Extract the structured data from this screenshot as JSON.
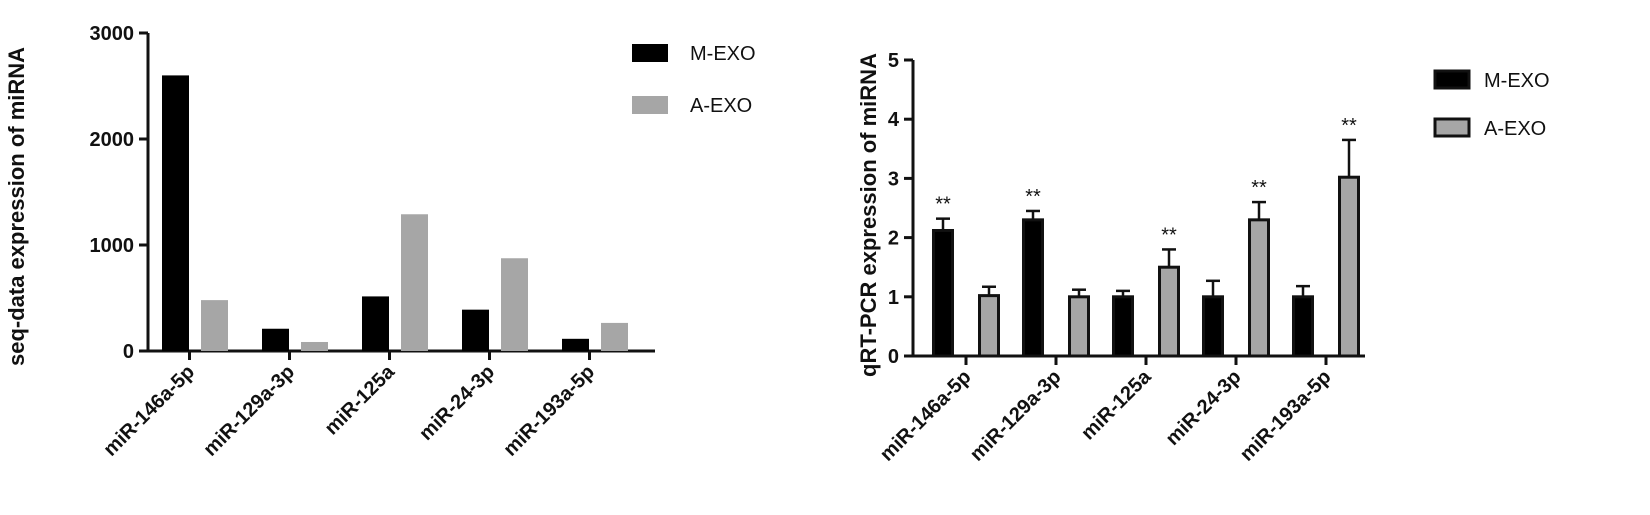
{
  "chart_data": [
    {
      "type": "bar",
      "title": "",
      "xlabel": "",
      "ylabel": "seq-data expression of miRNA",
      "ylim": [
        0,
        3000
      ],
      "yticks": [
        0,
        1000,
        2000,
        3000
      ],
      "categories": [
        "miR-146a-5p",
        "miR-129a-3p",
        "miR-125a",
        "miR-24-3p",
        "miR-193a-5p"
      ],
      "series": [
        {
          "name": "M-EXO",
          "color": "#000000",
          "values": [
            2600,
            210,
            515,
            390,
            115
          ]
        },
        {
          "name": "A-EXO",
          "color": "#a6a6a6",
          "values": [
            480,
            85,
            1290,
            875,
            265
          ]
        }
      ],
      "legend": "top-right",
      "grid": false
    },
    {
      "type": "bar",
      "title": "",
      "xlabel": "",
      "ylabel": "qRT-PCR expression of miRNA",
      "ylim": [
        0,
        5
      ],
      "yticks": [
        0,
        1,
        2,
        3,
        4,
        5
      ],
      "categories": [
        "miR-146a-5p",
        "miR-129a-3p",
        "miR-125a",
        "miR-24-3p",
        "miR-193a-5p"
      ],
      "series": [
        {
          "name": "M-EXO",
          "color": "#000000",
          "values": [
            2.12,
            2.3,
            1.0,
            1.0,
            1.0
          ],
          "errors": [
            0.2,
            0.15,
            0.1,
            0.27,
            0.18
          ]
        },
        {
          "name": "A-EXO",
          "color": "#a6a6a6",
          "values": [
            1.02,
            1.0,
            1.5,
            2.3,
            3.02
          ],
          "errors": [
            0.15,
            0.12,
            0.3,
            0.3,
            0.63
          ]
        }
      ],
      "annotations": [
        {
          "category": "miR-146a-5p",
          "series": "M-EXO",
          "text": "**"
        },
        {
          "category": "miR-129a-3p",
          "series": "M-EXO",
          "text": "**"
        },
        {
          "category": "miR-125a",
          "series": "A-EXO",
          "text": "**"
        },
        {
          "category": "miR-24-3p",
          "series": "A-EXO",
          "text": "**"
        },
        {
          "category": "miR-193a-5p",
          "series": "A-EXO",
          "text": "**"
        }
      ],
      "legend": "top-right",
      "grid": false
    }
  ]
}
